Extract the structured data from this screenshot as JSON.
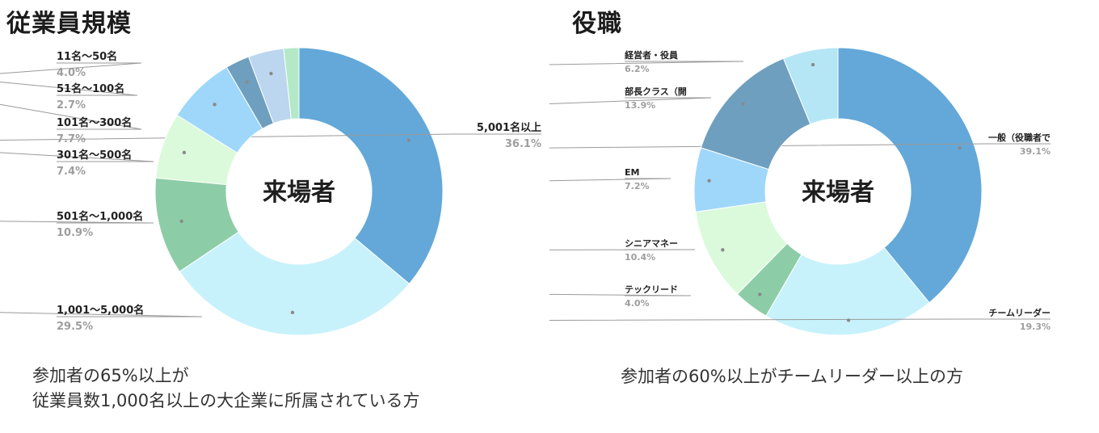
{
  "left_panel": {
    "title": "従業員規模",
    "caption_lines": [
      "参加者の65%以上が",
      "従業員数1,000名以上の大企業に所属されている方"
    ]
  },
  "right_panel": {
    "title": "役職",
    "caption_lines": [
      "参加者の60%以上がチームリーダー以上の方"
    ]
  },
  "chart_data": [
    {
      "type": "pie",
      "variant": "donut",
      "title": "従業員規模",
      "center_label": "来場者",
      "slices": [
        {
          "label": "5,001名以上",
          "value": 36.1,
          "value_label": "36.1%",
          "color": "#63a8d9"
        },
        {
          "label": "1,001〜5,000名",
          "value": 29.5,
          "value_label": "29.5%",
          "color": "#c8f2fb"
        },
        {
          "label": "501名〜1,000名",
          "value": 10.9,
          "value_label": "10.9%",
          "color": "#8ccda7"
        },
        {
          "label": "301名〜500名",
          "value": 7.4,
          "value_label": "7.4%",
          "color": "#dbfadb"
        },
        {
          "label": "101名〜300名",
          "value": 7.7,
          "value_label": "7.7%",
          "color": "#9fd7fb"
        },
        {
          "label": "51名〜100名",
          "value": 2.7,
          "value_label": "2.7%",
          "color": "#6f9fbf"
        },
        {
          "label": "11名〜50名",
          "value": 4.0,
          "value_label": "4.0%",
          "color": "#bcd6ef"
        },
        {
          "label": "",
          "value": 1.7,
          "value_label": "",
          "color": "#b3e9c7"
        }
      ]
    },
    {
      "type": "pie",
      "variant": "donut",
      "title": "役職",
      "center_label": "来場者",
      "slices": [
        {
          "label": "一般（役職者で",
          "value": 39.1,
          "value_label": "39.1%",
          "color": "#63a8d9"
        },
        {
          "label": "チームリーダー",
          "value": 19.3,
          "value_label": "19.3%",
          "color": "#c8f2fb"
        },
        {
          "label": "テックリード",
          "value": 4.0,
          "value_label": "4.0%",
          "color": "#8ccda7"
        },
        {
          "label": "シニアマネー",
          "value": 10.4,
          "value_label": "10.4%",
          "color": "#dbfadb"
        },
        {
          "label": "EM",
          "value": 7.2,
          "value_label": "7.2%",
          "color": "#9fd7fb"
        },
        {
          "label": "部長クラス（開",
          "value": 13.9,
          "value_label": "13.9%",
          "color": "#6f9fbf"
        },
        {
          "label": "経営者・役員",
          "value": 6.2,
          "value_label": "6.2%",
          "color": "#b5e6f6"
        }
      ]
    }
  ]
}
